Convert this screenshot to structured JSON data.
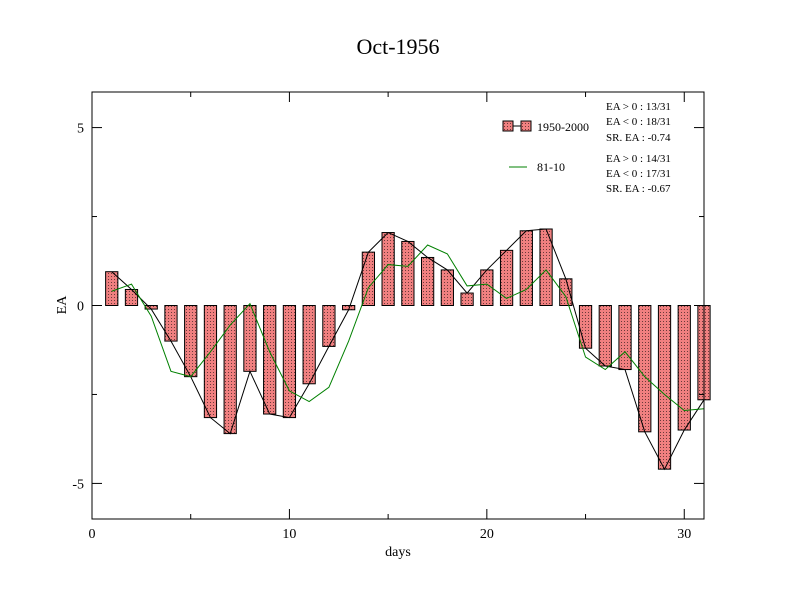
{
  "chart_data": {
    "type": "bar",
    "title": "Oct-1956",
    "xlabel": "days",
    "ylabel": "EA",
    "xlim": [
      0,
      31
    ],
    "ylim": [
      -6,
      6
    ],
    "x_ticks": [
      0,
      10,
      20,
      30
    ],
    "y_ticks": [
      -5,
      0,
      5
    ],
    "x_tick_labels": [
      "0",
      "10",
      "20",
      "30"
    ],
    "y_tick_labels": [
      "-5",
      "0",
      "5"
    ],
    "grid": false,
    "legend_position": "top-right",
    "series": [
      {
        "name": "1950-2000",
        "kind": "bar",
        "color": "#f08080",
        "outline_line_color": "#000000",
        "x": [
          1,
          2,
          3,
          4,
          5,
          6,
          7,
          8,
          9,
          10,
          11,
          12,
          13,
          14,
          15,
          16,
          17,
          18,
          19,
          20,
          21,
          22,
          23,
          24,
          25,
          26,
          27,
          28,
          29,
          30,
          31
        ],
        "values": [
          0.95,
          0.45,
          -0.1,
          -1.0,
          -2.0,
          -3.15,
          -3.6,
          -1.85,
          -3.05,
          -3.15,
          -2.2,
          -1.15,
          -0.12,
          1.5,
          2.05,
          1.8,
          1.35,
          1.0,
          0.35,
          1.0,
          1.55,
          2.1,
          2.15,
          0.75,
          -1.2,
          -1.7,
          -1.8,
          -3.55,
          -4.6,
          -3.5,
          -2.65
        ]
      },
      {
        "name": "81-10",
        "kind": "line",
        "color": "#008000",
        "x": [
          1,
          2,
          3,
          4,
          5,
          6,
          7,
          8,
          9,
          10,
          11,
          12,
          13,
          14,
          15,
          16,
          17,
          18,
          19,
          20,
          21,
          22,
          23,
          24,
          25,
          26,
          27,
          28,
          29,
          30,
          31
        ],
        "values": [
          0.4,
          0.6,
          -0.3,
          -1.85,
          -2.0,
          -1.3,
          -0.55,
          0.05,
          -1.3,
          -2.4,
          -2.7,
          -2.3,
          -1.0,
          0.5,
          1.15,
          1.1,
          1.7,
          1.45,
          0.55,
          0.6,
          0.2,
          0.45,
          1.0,
          0.25,
          -1.45,
          -1.8,
          -1.3,
          -2.0,
          -2.5,
          -2.95,
          -2.9
        ]
      }
    ],
    "annotations": {
      "group1": [
        "EA > 0 : 13/31",
        "EA < 0 : 18/31",
        "SR. EA : -0.74"
      ],
      "group2": [
        "EA > 0 : 14/31",
        "EA < 0 : 17/31",
        "SR. EA : -0.67"
      ]
    }
  }
}
